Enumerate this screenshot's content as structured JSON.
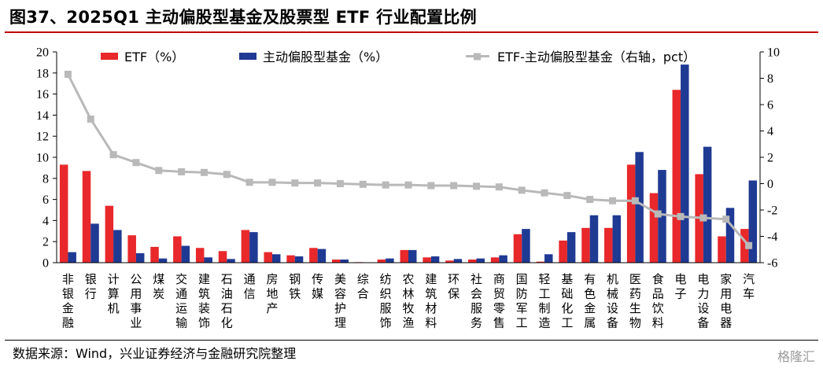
{
  "title": "图37、2025Q1 主动偏股型基金及股票型 ETF 行业配置比例",
  "source": "数据来源：Wind，兴业证券经济与金融研究院整理",
  "watermark": "格隆汇",
  "colors": {
    "etf": "#e8282b",
    "fund": "#1f3a93",
    "diff": "#b9b9b9",
    "title_rule": "#c00000"
  },
  "chart_data": {
    "type": "bar",
    "categories": [
      "非银金融",
      "银行",
      "计算机",
      "公用事业",
      "煤炭",
      "交通运输",
      "建筑装饰",
      "石油石化",
      "通信",
      "房地产",
      "钢铁",
      "传媒",
      "美容护理",
      "综合",
      "纺织服饰",
      "农林牧渔",
      "建筑材料",
      "环保",
      "社会服务",
      "商贸零售",
      "国防军工",
      "轻工制造",
      "基础化工",
      "有色金属",
      "机械设备",
      "医药生物",
      "食品饮料",
      "电子",
      "电力设备",
      "家用电器",
      "汽车"
    ],
    "series": [
      {
        "name": "ETF（%）",
        "axis": "left",
        "type": "bar",
        "values": [
          9.3,
          8.7,
          5.4,
          2.6,
          1.5,
          2.5,
          1.4,
          1.1,
          3.1,
          1.0,
          0.7,
          1.4,
          0.3,
          0.05,
          0.3,
          1.2,
          0.5,
          0.2,
          0.3,
          0.5,
          2.7,
          0.1,
          2.1,
          3.3,
          3.3,
          9.3,
          6.6,
          16.4,
          8.4,
          2.5,
          3.2
        ]
      },
      {
        "name": "主动偏股型基金（%）",
        "axis": "left",
        "type": "bar",
        "values": [
          1.0,
          3.7,
          3.1,
          0.9,
          0.4,
          1.6,
          0.5,
          0.35,
          2.9,
          0.8,
          0.6,
          1.3,
          0.3,
          0.0,
          0.4,
          1.2,
          0.6,
          0.35,
          0.4,
          0.7,
          3.2,
          0.8,
          2.9,
          4.5,
          4.5,
          10.5,
          8.8,
          18.8,
          11.0,
          5.2,
          7.8
        ]
      },
      {
        "name": "ETF-主动偏股型基金（右轴，pct）",
        "axis": "right",
        "type": "line",
        "values": [
          8.3,
          4.9,
          2.2,
          1.6,
          1.0,
          0.9,
          0.85,
          0.7,
          0.1,
          0.1,
          0.05,
          0.05,
          0.0,
          -0.05,
          -0.1,
          -0.1,
          -0.15,
          -0.15,
          -0.2,
          -0.25,
          -0.5,
          -0.7,
          -0.9,
          -1.2,
          -1.3,
          -1.3,
          -2.3,
          -2.5,
          -2.6,
          -2.7,
          -4.7
        ]
      }
    ],
    "ylim_left": [
      0,
      20
    ],
    "yticks_left": [
      0,
      2,
      4,
      6,
      8,
      10,
      12,
      14,
      16,
      18,
      20
    ],
    "ylim_right": [
      -6,
      10
    ],
    "yticks_right": [
      -6,
      -4,
      -2,
      0,
      2,
      4,
      6,
      8,
      10
    ],
    "legend": "top",
    "grid": false
  }
}
